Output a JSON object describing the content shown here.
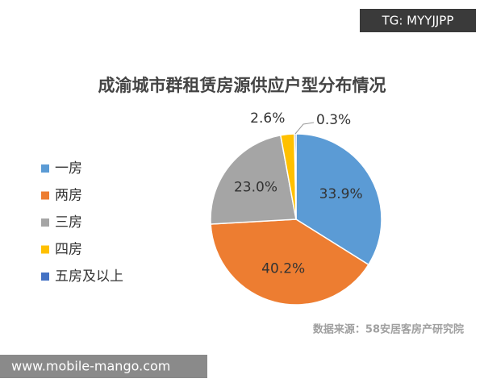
{
  "chart_data": {
    "type": "pie",
    "title": "成渝城市群租赁房源供应户型分布情况",
    "categories": [
      "一房",
      "两房",
      "三房",
      "四房",
      "五房及以上"
    ],
    "values": [
      33.9,
      40.2,
      23.0,
      2.6,
      0.3
    ],
    "value_labels": [
      "33.9%",
      "40.2%",
      "23.0%",
      "2.6%",
      "0.3%"
    ],
    "colors": [
      "#5b9bd5",
      "#ed7d31",
      "#a5a5a5",
      "#ffc000",
      "#4472c4"
    ],
    "legend": "left",
    "source": "数据来源：58安居客房产研究院"
  },
  "watermarks": {
    "top": "TG: MYYJJPP",
    "bottom": "www.mobile-mango.com"
  }
}
